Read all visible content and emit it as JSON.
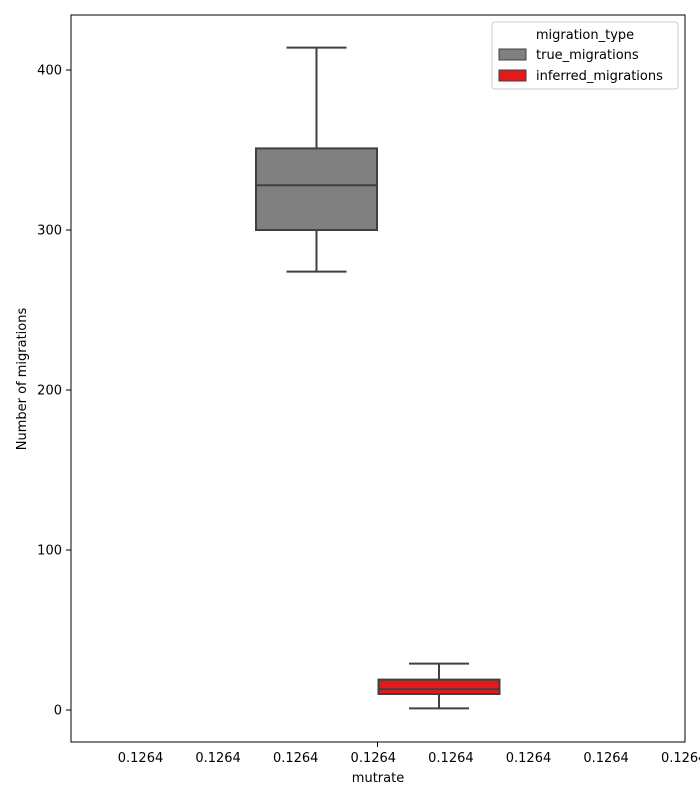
{
  "chart_data": {
    "type": "box",
    "title": "",
    "xlabel": "mutrate",
    "ylabel": "Number of migrations",
    "x_tick_label": "0.1264",
    "ylim": [
      -20,
      435
    ],
    "y_ticks": [
      0,
      100,
      200,
      300,
      400
    ],
    "grid": false,
    "legend": {
      "title": "migration_type",
      "placement": "upper-right"
    },
    "series": [
      {
        "name": "true_migrations",
        "color": "#808080",
        "whisker_low": 274,
        "q1": 300,
        "median": 328,
        "q3": 351,
        "whisker_high": 414
      },
      {
        "name": "inferred_migrations",
        "color": "#e31a1c",
        "whisker_low": 1,
        "q1": 10,
        "median": 13,
        "q3": 19,
        "whisker_high": 29
      }
    ]
  }
}
